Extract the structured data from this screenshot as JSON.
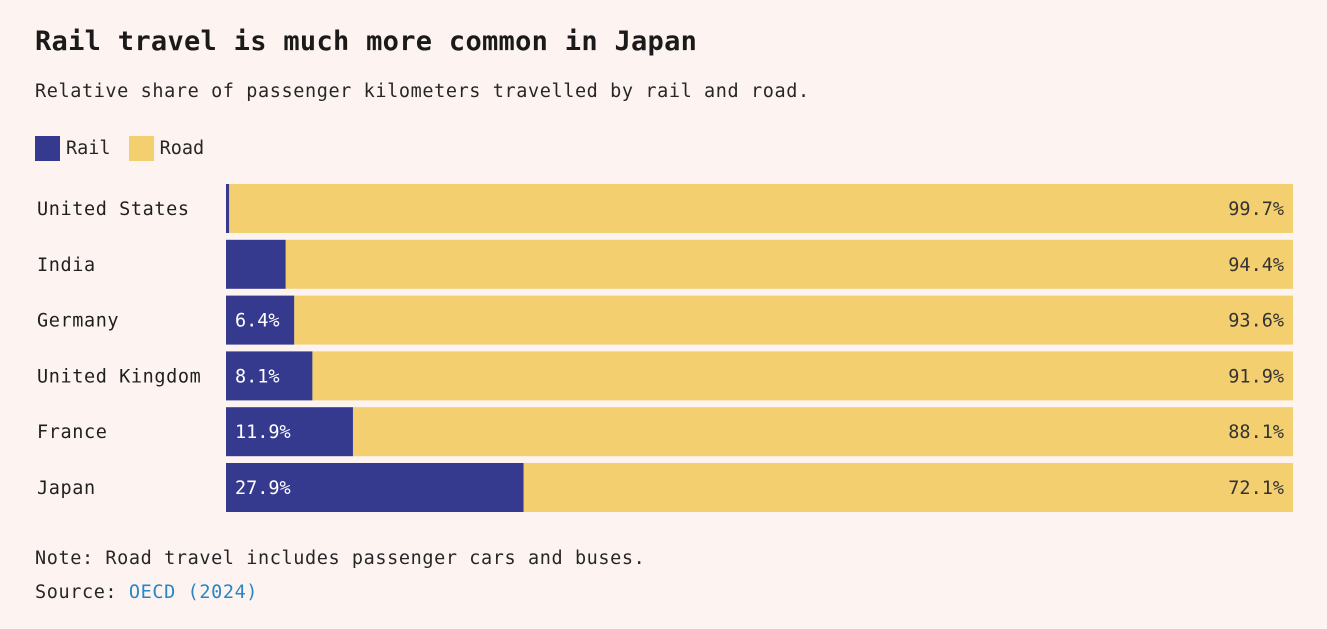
{
  "title": "Rail travel is much more common in Japan",
  "subtitle": "Relative share of passenger kilometers travelled by rail and road.",
  "colors": {
    "rail": "#363a8e",
    "road": "#f3cf6f",
    "background": "#fdf4f1",
    "link": "#2a85c4"
  },
  "note": "Note: Road travel includes passenger cars and buses.",
  "source": {
    "label": "Source:",
    "link_text": "OECD (2024)"
  },
  "chart_data": {
    "type": "bar",
    "orientation": "horizontal",
    "stacked": true,
    "normalized": true,
    "title": "Rail travel is much more common in Japan",
    "subtitle": "Relative share of passenger kilometers travelled by rail and road.",
    "legend": {
      "placement": "top-left"
    },
    "categories": [
      "United States",
      "India",
      "Germany",
      "United Kingdom",
      "France",
      "Japan"
    ],
    "series": [
      {
        "name": "Rail",
        "color": "#363a8e",
        "values": [
          0.3,
          5.6,
          6.4,
          8.1,
          11.9,
          27.9
        ],
        "labels": [
          "",
          "",
          "6.4%",
          "8.1%",
          "11.9%",
          "27.9%"
        ]
      },
      {
        "name": "Road",
        "color": "#f3cf6f",
        "values": [
          99.7,
          94.4,
          93.6,
          91.9,
          88.1,
          72.1
        ],
        "labels": [
          "99.7%",
          "94.4%",
          "93.6%",
          "91.9%",
          "88.1%",
          "72.1%"
        ]
      }
    ],
    "xlim": [
      0,
      100
    ],
    "grid": false
  }
}
